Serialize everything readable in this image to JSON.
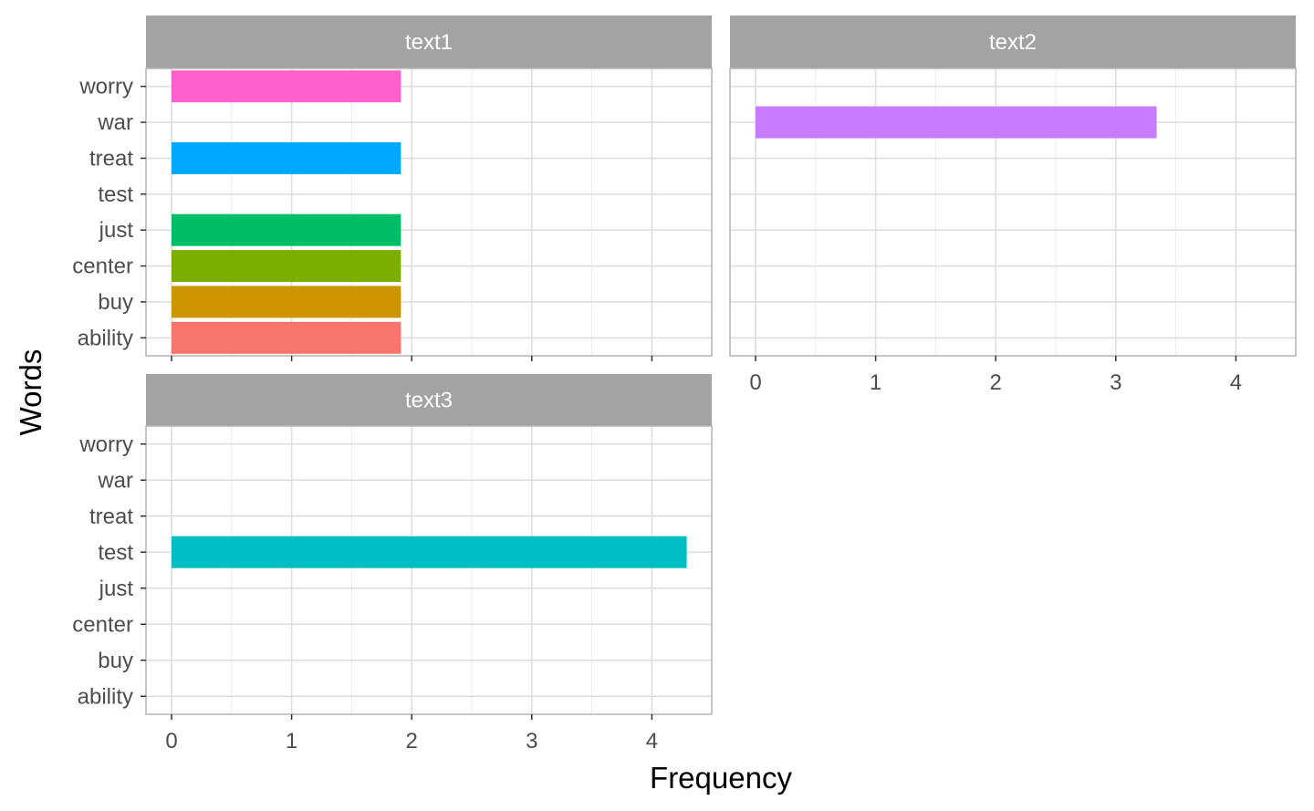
{
  "chart_data": {
    "type": "bar",
    "orientation": "horizontal",
    "xlabel": "Frequency",
    "ylabel": "Words",
    "categories": [
      "ability",
      "buy",
      "center",
      "just",
      "test",
      "treat",
      "war",
      "worry"
    ],
    "xlim": [
      0,
      4.3
    ],
    "x_ticks": [
      "0",
      "1",
      "2",
      "3",
      "4"
    ],
    "grid": true,
    "legend": "none",
    "panels": [
      {
        "name": "text1",
        "bars": [
          {
            "category": "ability",
            "value": 1.91,
            "color": "#F8766D"
          },
          {
            "category": "buy",
            "value": 1.91,
            "color": "#CD9600"
          },
          {
            "category": "center",
            "value": 1.91,
            "color": "#7CAE00"
          },
          {
            "category": "just",
            "value": 1.91,
            "color": "#00BE67"
          },
          {
            "category": "treat",
            "value": 1.91,
            "color": "#00A9FF"
          },
          {
            "category": "worry",
            "value": 1.91,
            "color": "#FF61CC"
          }
        ]
      },
      {
        "name": "text2",
        "bars": [
          {
            "category": "war",
            "value": 3.34,
            "color": "#C77CFF"
          }
        ]
      },
      {
        "name": "text3",
        "bars": [
          {
            "category": "test",
            "value": 4.29,
            "color": "#00BFC4"
          }
        ]
      }
    ]
  }
}
